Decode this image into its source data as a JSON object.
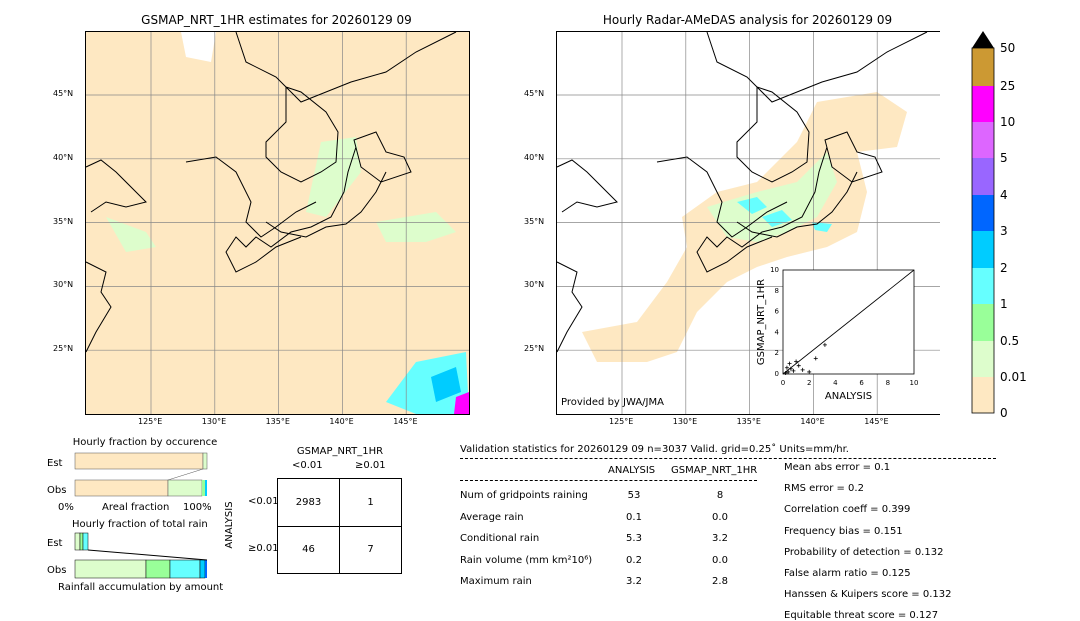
{
  "left_map": {
    "title": "GSMAP_NRT_1HR estimates for 20260129 09"
  },
  "right_map": {
    "title": "Hourly Radar-AMeDAS analysis for 20260129 09",
    "credit": "Provided by JWA/JMA"
  },
  "lat_ticks": [
    "45°N",
    "40°N",
    "35°N",
    "30°N",
    "25°N"
  ],
  "lon_ticks": [
    "125°E",
    "130°E",
    "135°E",
    "140°E",
    "145°E"
  ],
  "colorbar": {
    "labels": [
      "50",
      "25",
      "10",
      "5",
      "4",
      "3",
      "2",
      "1",
      "0.5",
      "0.01",
      "0"
    ],
    "colors": [
      "#cc9933",
      "#ff00ff",
      "#dd66ff",
      "#9966ff",
      "#0066ff",
      "#00ccff",
      "#66ffff",
      "#99ff99",
      "#ddfdcc",
      "#fee8c2"
    ]
  },
  "chart_data": [
    {
      "type": "scatter",
      "xlabel": "ANALYSIS",
      "ylabel": "GSMAP_NRT_1HR",
      "xlim": [
        0,
        10
      ],
      "ylim": [
        0,
        10
      ],
      "ticks": [
        "0",
        "2",
        "4",
        "6",
        "8",
        "10"
      ],
      "points": [
        [
          0.2,
          0.1
        ],
        [
          0.4,
          0.2
        ],
        [
          0.6,
          0.5
        ],
        [
          0.8,
          0.3
        ],
        [
          1.0,
          1.2
        ],
        [
          1.2,
          0.8
        ],
        [
          1.5,
          0.4
        ],
        [
          2.0,
          0.2
        ],
        [
          2.5,
          1.5
        ],
        [
          3.2,
          2.8
        ],
        [
          0.3,
          0.6
        ],
        [
          0.5,
          1.0
        ]
      ]
    },
    {
      "type": "bar",
      "title": "Hourly fraction by occurence",
      "xlabel": "Areal fraction",
      "ticks": [
        "0%",
        "100%"
      ],
      "categories": [
        "Est",
        "Obs"
      ]
    },
    {
      "type": "bar",
      "title": "Hourly fraction of total rain",
      "xlabel": "Rainfall accumulation by amount",
      "categories": [
        "Est",
        "Obs"
      ]
    }
  ],
  "contingency": {
    "title": "GSMAP_NRT_1HR",
    "col_labels": [
      "<0.01",
      "≥0.01"
    ],
    "row_axis": "ANALYSIS",
    "row_labels": [
      "<0.01",
      "≥0.01"
    ],
    "cells": [
      [
        "2983",
        "1"
      ],
      [
        "46",
        "7"
      ]
    ]
  },
  "stats": {
    "header": "Validation statistics for 20260129 09  n=3037 Valid. grid=0.25˚ Units=mm/hr.",
    "col_headers": [
      "ANALYSIS",
      "GSMAP_NRT_1HR"
    ],
    "rows": [
      {
        "label": "Num of gridpoints raining",
        "a": "53",
        "g": "8"
      },
      {
        "label": "Average rain",
        "a": "0.1",
        "g": "0.0"
      },
      {
        "label": "Conditional rain",
        "a": "5.3",
        "g": "3.2"
      },
      {
        "label": "Rain volume (mm km²10⁶)",
        "a": "0.2",
        "g": "0.0"
      },
      {
        "label": "Maximum rain",
        "a": "3.2",
        "g": "2.8"
      }
    ],
    "scores": [
      "Mean abs error =    0.1",
      "RMS error =    0.2",
      "Correlation coeff =  0.399",
      "Frequency bias =  0.151",
      "Probability of detection =  0.132",
      "False alarm ratio =  0.125",
      "Hanssen & Kuipers score =  0.132",
      "Equitable threat score =  0.127"
    ]
  }
}
